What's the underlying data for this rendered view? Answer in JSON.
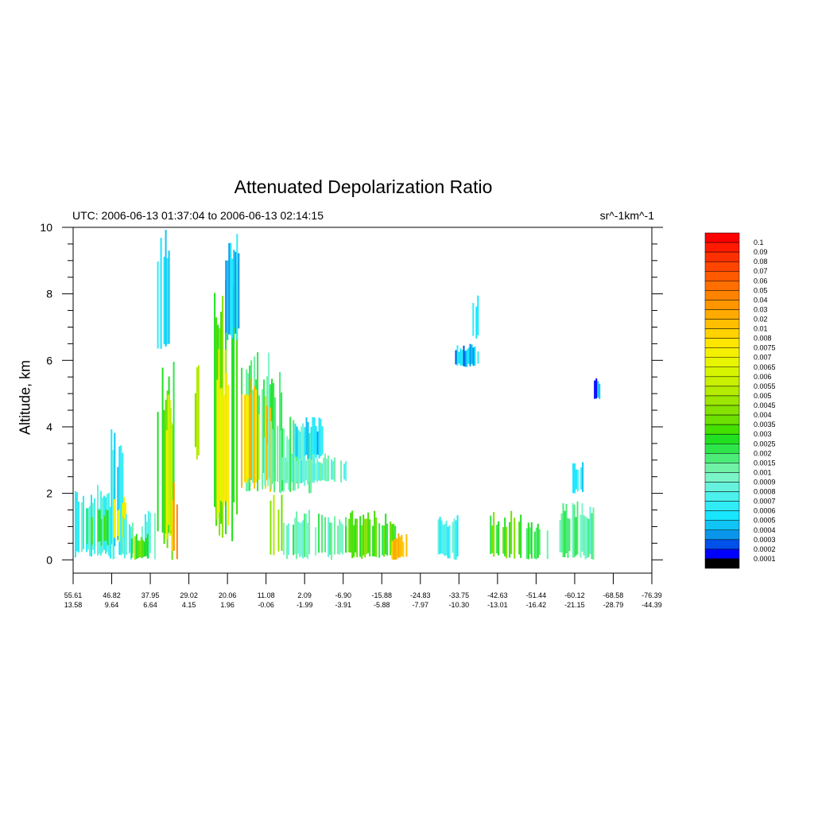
{
  "chart_data": {
    "type": "heatmap",
    "title": "Attenuated Depolarization Ratio",
    "subtitle_left": "UTC: 2006-06-13 01:37:04 to 2006-06-13 02:14:15",
    "subtitle_right": "sr^-1km^-1",
    "ylabel": "Altitude, km",
    "xlabel": "",
    "ylim": [
      -0.4,
      10
    ],
    "yticks": [
      0,
      2,
      4,
      6,
      8,
      10
    ],
    "yticks_minor_step": 0.5,
    "x_ticks": [
      {
        "lat": "55.61",
        "lon": "13.58"
      },
      {
        "lat": "46.82",
        "lon": "9.64"
      },
      {
        "lat": "37.95",
        "lon": "6.64"
      },
      {
        "lat": "29.02",
        "lon": "4.15"
      },
      {
        "lat": "20.06",
        "lon": "1.96"
      },
      {
        "lat": "11.08",
        "lon": "-0.06"
      },
      {
        "lat": "2.09",
        "lon": "-1.99"
      },
      {
        "lat": "-6.90",
        "lon": "-3.91"
      },
      {
        "lat": "-15.88",
        "lon": "-5.88"
      },
      {
        "lat": "-24.83",
        "lon": "-7.97"
      },
      {
        "lat": "-33.75",
        "lon": "-10.30"
      },
      {
        "lat": "-42.63",
        "lon": "-13.01"
      },
      {
        "lat": "-51.44",
        "lon": "-16.42"
      },
      {
        "lat": "-60.12",
        "lon": "-21.15"
      },
      {
        "lat": "-68.58",
        "lon": "-28.79"
      },
      {
        "lat": "-76.39",
        "lon": "-44.39"
      }
    ],
    "colorbar": {
      "labels": [
        "0.1",
        "0.09",
        "0.08",
        "0.07",
        "0.06",
        "0.05",
        "0.04",
        "0.03",
        "0.02",
        "0.01",
        "0.008",
        "0.0075",
        "0.007",
        "0.0065",
        "0.006",
        "0.0055",
        "0.005",
        "0.0045",
        "0.004",
        "0.0035",
        "0.003",
        "0.0025",
        "0.002",
        "0.0015",
        "0.001",
        "0.0009",
        "0.0008",
        "0.0007",
        "0.0006",
        "0.0005",
        "0.0004",
        "0.0003",
        "0.0002",
        "0.0001"
      ],
      "colors": [
        "#ff0000",
        "#ff1a00",
        "#ff3000",
        "#ff4500",
        "#ff5a00",
        "#ff6e00",
        "#ff8200",
        "#ff9600",
        "#ffaa00",
        "#ffbe00",
        "#ffd200",
        "#ffe600",
        "#f5f000",
        "#e8f500",
        "#d8f500",
        "#c8f000",
        "#b4eb00",
        "#9ce600",
        "#84e100",
        "#6ce000",
        "#44e000",
        "#20e020",
        "#2ee64a",
        "#4cec78",
        "#6ff2a6",
        "#7af5c8",
        "#66f2dc",
        "#4cf0ec",
        "#30ecf6",
        "#18e6ff",
        "#10c4f6",
        "#0a96ea",
        "#0050ea",
        "#0000ff",
        "#000000"
      ]
    },
    "regions": [
      {
        "x": [
          0.0,
          0.07
        ],
        "y": [
          0.0,
          2.3
        ],
        "level": 27
      },
      {
        "x": [
          0.02,
          0.06
        ],
        "y": [
          0.4,
          1.6
        ],
        "level": 22
      },
      {
        "x": [
          0.065,
          0.085
        ],
        "y": [
          0.0,
          4.0
        ],
        "level": 28
      },
      {
        "x": [
          0.07,
          0.09
        ],
        "y": [
          0.5,
          2.0
        ],
        "level": 12
      },
      {
        "x": [
          0.085,
          0.14
        ],
        "y": [
          0.0,
          1.5
        ],
        "level": 26
      },
      {
        "x": [
          0.1,
          0.13
        ],
        "y": [
          0.0,
          0.8
        ],
        "level": 19
      },
      {
        "x": [
          0.145,
          0.175
        ],
        "y": [
          0.0,
          6.0
        ],
        "level": 20
      },
      {
        "x": [
          0.155,
          0.17
        ],
        "y": [
          0.5,
          5.0
        ],
        "level": 14
      },
      {
        "x": [
          0.145,
          0.165
        ],
        "y": [
          6.0,
          10.0
        ],
        "level": 30
      },
      {
        "x": [
          0.17,
          0.18
        ],
        "y": [
          0.0,
          2.5
        ],
        "level": 8
      },
      {
        "x": [
          0.21,
          0.22
        ],
        "y": [
          3.0,
          6.0
        ],
        "level": 16
      },
      {
        "x": [
          0.235,
          0.285
        ],
        "y": [
          0.5,
          9.5
        ],
        "level": 20
      },
      {
        "x": [
          0.245,
          0.27
        ],
        "y": [
          1.0,
          7.0
        ],
        "level": 12
      },
      {
        "x": [
          0.26,
          0.285
        ],
        "y": [
          6.5,
          10.0
        ],
        "level": 30
      },
      {
        "x": [
          0.29,
          0.36
        ],
        "y": [
          2.0,
          6.3
        ],
        "level": 23
      },
      {
        "x": [
          0.29,
          0.34
        ],
        "y": [
          2.0,
          5.5
        ],
        "level": 10
      },
      {
        "x": [
          0.33,
          0.42
        ],
        "y": [
          2.0,
          4.3
        ],
        "level": 24
      },
      {
        "x": [
          0.36,
          0.47
        ],
        "y": [
          2.3,
          3.2
        ],
        "level": 26
      },
      {
        "x": [
          0.38,
          0.44
        ],
        "y": [
          3.0,
          4.3
        ],
        "level": 29
      },
      {
        "x": [
          0.36,
          0.47
        ],
        "y": [
          0.0,
          1.5
        ],
        "level": 24
      },
      {
        "x": [
          0.34,
          0.36
        ],
        "y": [
          0.0,
          2.0
        ],
        "level": 18
      },
      {
        "x": [
          0.47,
          0.56
        ],
        "y": [
          0.0,
          1.5
        ],
        "level": 20
      },
      {
        "x": [
          0.55,
          0.58
        ],
        "y": [
          0.0,
          0.8
        ],
        "level": 9
      },
      {
        "x": [
          0.63,
          0.67
        ],
        "y": [
          0.0,
          1.5
        ],
        "level": 28
      },
      {
        "x": [
          0.66,
          0.7
        ],
        "y": [
          5.8,
          6.5
        ],
        "level": 30
      },
      {
        "x": [
          0.69,
          0.7
        ],
        "y": [
          6.6,
          8.0
        ],
        "level": 28
      },
      {
        "x": [
          0.72,
          0.78
        ],
        "y": [
          0.0,
          1.5
        ],
        "level": 20
      },
      {
        "x": [
          0.78,
          0.82
        ],
        "y": [
          0.0,
          1.2
        ],
        "level": 22
      },
      {
        "x": [
          0.84,
          0.9
        ],
        "y": [
          0.0,
          1.8
        ],
        "level": 24
      },
      {
        "x": [
          0.86,
          0.88
        ],
        "y": [
          2.0,
          3.0
        ],
        "level": 29
      },
      {
        "x": [
          0.9,
          0.91
        ],
        "y": [
          4.8,
          5.5
        ],
        "level": 31
      }
    ]
  }
}
